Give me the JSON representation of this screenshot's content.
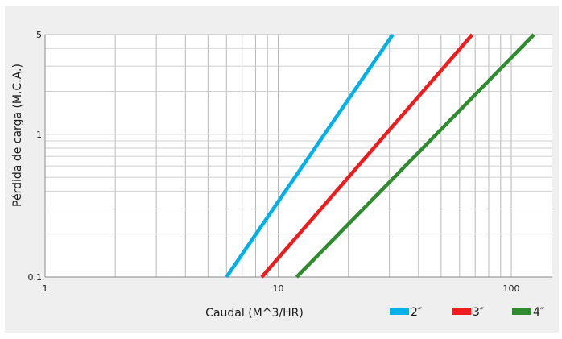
{
  "chart_data": {
    "type": "line",
    "xlabel": "Caudal (M^3/HR)",
    "ylabel": "Pérdida de carga (M.C.A.)",
    "x_scale": "log",
    "y_scale": "log",
    "xlim": [
      1,
      150
    ],
    "ylim": [
      0.1,
      5
    ],
    "x_ticks": [
      {
        "value": 1,
        "label": "1"
      },
      {
        "value": 10,
        "label": "10"
      },
      {
        "value": 100,
        "label": "100"
      }
    ],
    "y_ticks": [
      {
        "value": 0.1,
        "label": "0.1"
      },
      {
        "value": 1,
        "label": "1"
      },
      {
        "value": 5,
        "label": "5"
      }
    ],
    "grid": true,
    "legend_position": "bottom-right",
    "series": [
      {
        "name": "2″",
        "color": "#00b0e8",
        "x": [
          6.0,
          31.0
        ],
        "y": [
          0.1,
          5
        ]
      },
      {
        "name": "3″",
        "color": "#ee1c1c",
        "x": [
          8.5,
          68.0
        ],
        "y": [
          0.1,
          5
        ]
      },
      {
        "name": "4″",
        "color": "#2e8b2e",
        "x": [
          12.0,
          125.0
        ],
        "y": [
          0.1,
          5
        ]
      }
    ]
  }
}
